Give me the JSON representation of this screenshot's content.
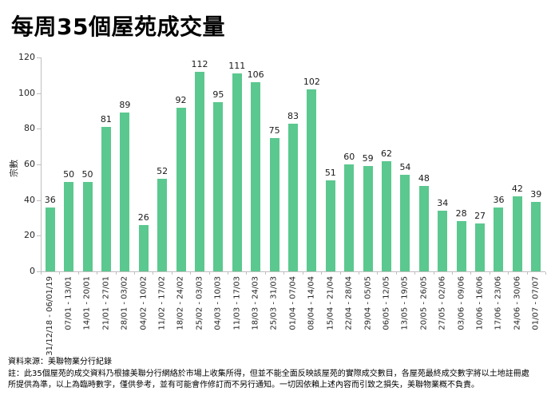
{
  "title": "每周35個屋苑成交量",
  "chart_data": {
    "type": "bar",
    "title": "每周35個屋苑成交量",
    "xlabel": "",
    "ylabel": "宗數",
    "ylim": [
      0,
      120
    ],
    "yticks": [
      0,
      20,
      40,
      60,
      80,
      100,
      120
    ],
    "grid": false,
    "legend": "none",
    "data_labels": true,
    "bar_color": "#5BC88F",
    "categories": [
      "31/12/18 - 06/01/19",
      "07/01 - 13/01",
      "14/01 - 20/01",
      "21/01 - 27/01",
      "28/01 - 03/02",
      "04/02 - 10/02",
      "11/02 - 17/02",
      "18/02 - 24/02",
      "25/02 - 03/03",
      "04/03 - 10/03",
      "11/03 - 17/03",
      "18/03 - 24/03",
      "25/03 - 31/03",
      "01/04 - 07/04",
      "08/04 - 14/04",
      "15/04 - 21/04",
      "22/04 - 28/04",
      "29/04 - 05/05",
      "06/05 - 12/05",
      "13/05 - 19/05",
      "20/05 - 26/05",
      "27/05 - 02/06",
      "03/06 - 09/06",
      "10/06 - 16/06",
      "17/06 - 23/06",
      "24/06 - 30/06",
      "01/07 - 07/07"
    ],
    "values": [
      36,
      50,
      50,
      81,
      89,
      26,
      52,
      92,
      112,
      95,
      111,
      106,
      75,
      83,
      102,
      51,
      60,
      59,
      62,
      54,
      48,
      34,
      28,
      27,
      36,
      42,
      39
    ]
  },
  "footer": {
    "source": "資料來源：美聯物業分行紀錄",
    "note_line1": "註：此35個屋苑的成交資料乃根據美聯分行網絡於市場上收集所得，但並不能全面反映該屋苑的實際成交數目，各屋苑最終成交數字將以土地註冊處",
    "note_line2": "所提供為準，以上為臨時數字，僅供參考，並有可能會作修訂而不另行通知。一切因依賴上述內容而引致之損失，美聯物業概不負責。"
  }
}
